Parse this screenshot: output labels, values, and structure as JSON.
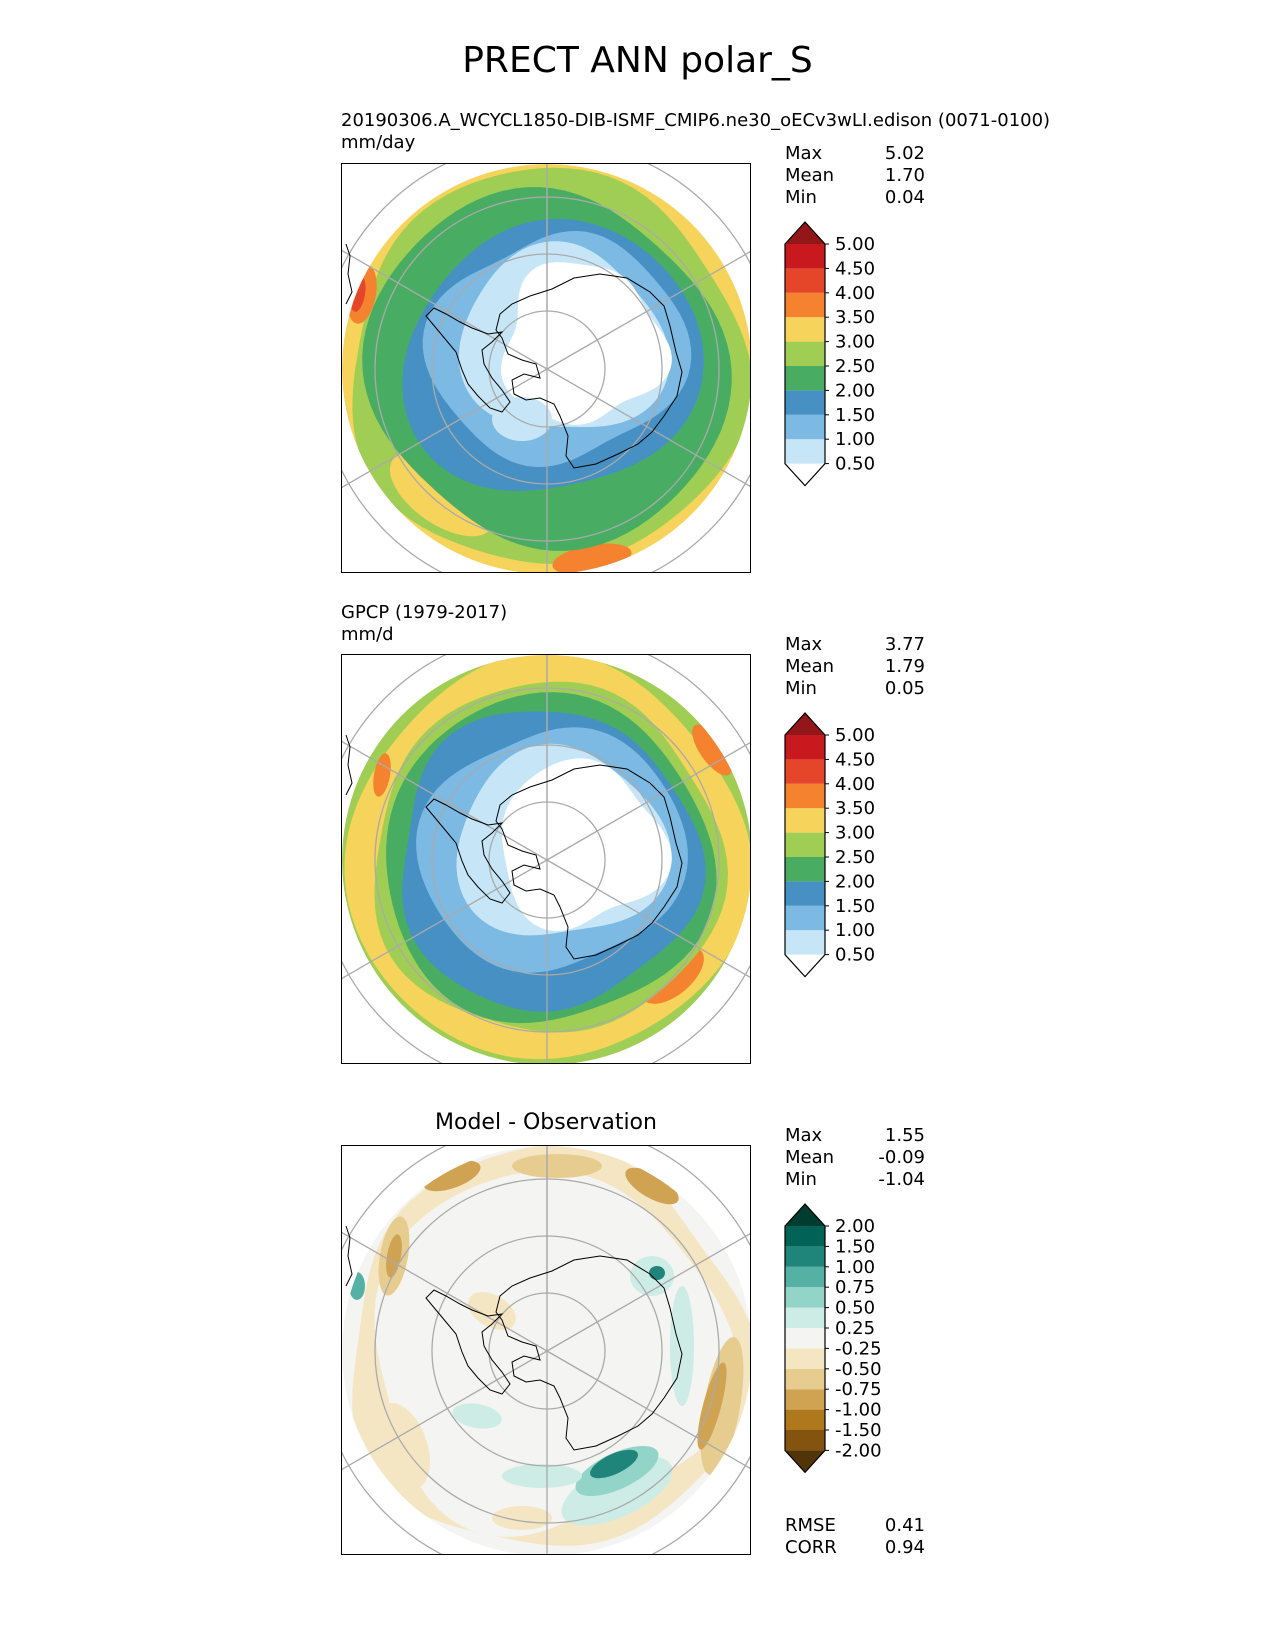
{
  "figure": {
    "title": "PRECT ANN polar_S"
  },
  "chart_data": [
    {
      "type": "heatmap",
      "projection": "south-polar-stereographic",
      "title_line1": "20190306.A_WCYCL1850-DIB-ISMF_CMIP6.ne30_oECv3wLI.edison (0071-0100)",
      "title_line2": "mm/day",
      "stats": {
        "max_label": "Max",
        "max": "5.02",
        "mean_label": "Mean",
        "mean": "1.70",
        "min_label": "Min",
        "min": "0.04"
      },
      "colorbar": {
        "levels": [
          "0.50",
          "1.00",
          "1.50",
          "2.00",
          "2.50",
          "3.00",
          "3.50",
          "4.00",
          "4.50",
          "5.00"
        ],
        "colors": [
          "#ffffff",
          "#c6e6f7",
          "#7cb9e3",
          "#4690c3",
          "#48ad62",
          "#a0ce55",
          "#f6d35a",
          "#f5822f",
          "#e54528",
          "#c8191e",
          "#931618"
        ]
      }
    },
    {
      "type": "heatmap",
      "projection": "south-polar-stereographic",
      "title_line1": "GPCP (1979-2017)",
      "title_line2": "mm/d",
      "stats": {
        "max_label": "Max",
        "max": "3.77",
        "mean_label": "Mean",
        "mean": "1.79",
        "min_label": "Min",
        "min": "0.05"
      },
      "colorbar": {
        "levels": [
          "0.50",
          "1.00",
          "1.50",
          "2.00",
          "2.50",
          "3.00",
          "3.50",
          "4.00",
          "4.50",
          "5.00"
        ],
        "colors": [
          "#ffffff",
          "#c6e6f7",
          "#7cb9e3",
          "#4690c3",
          "#48ad62",
          "#a0ce55",
          "#f6d35a",
          "#f5822f",
          "#e54528",
          "#c8191e",
          "#931618"
        ]
      }
    },
    {
      "type": "heatmap",
      "projection": "south-polar-stereographic",
      "title": "Model - Observation",
      "stats": {
        "max_label": "Max",
        "max": "1.55",
        "mean_label": "Mean",
        "mean": "-0.09",
        "min_label": "Min",
        "min": "-1.04",
        "rmse_label": "RMSE",
        "rmse": "0.41",
        "corr_label": "CORR",
        "corr": "0.94"
      },
      "colorbar": {
        "levels": [
          "-2.00",
          "-1.50",
          "-1.00",
          "-0.75",
          "-0.50",
          "-0.25",
          "0.25",
          "0.50",
          "0.75",
          "1.00",
          "1.50",
          "2.00"
        ],
        "colors": [
          "#523409",
          "#83530f",
          "#b0781d",
          "#d0a352",
          "#e6cd8f",
          "#f5e6c3",
          "#f4f4f2",
          "#cdece6",
          "#93d4c8",
          "#55b1a3",
          "#1f857a",
          "#006355",
          "#003c30"
        ]
      }
    }
  ]
}
